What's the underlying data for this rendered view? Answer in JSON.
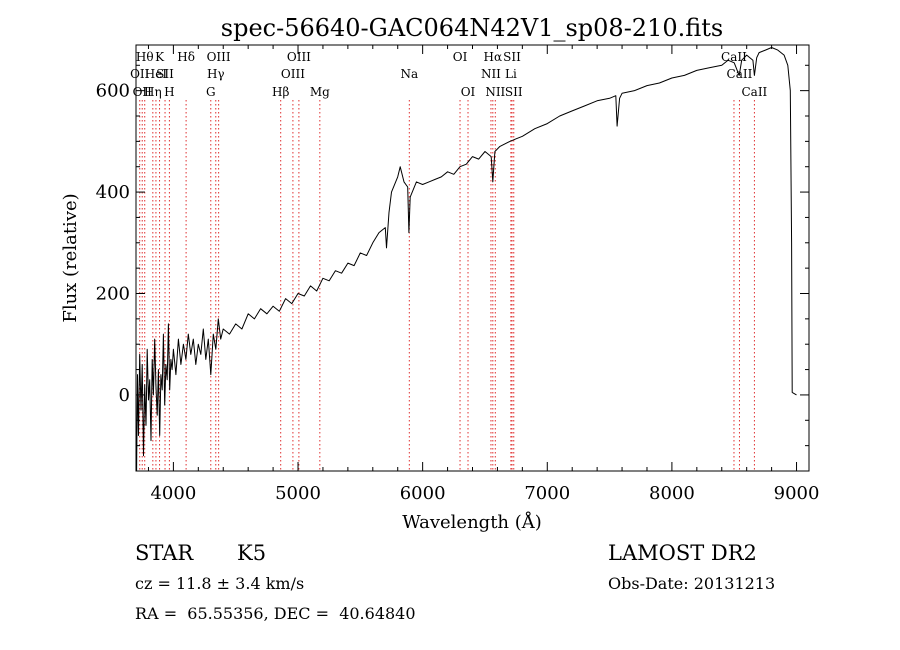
{
  "chart_data": {
    "type": "line",
    "title": "spec-56640-GAC064N42V1_sp08-210.fits",
    "xlabel": "Wavelength (Å)",
    "ylabel": "Flux (relative)",
    "xlim": [
      3700,
      9100
    ],
    "ylim": [
      -150,
      690
    ],
    "x_ticks": [
      4000,
      5000,
      6000,
      7000,
      8000,
      9000
    ],
    "y_ticks": [
      0,
      200,
      400,
      600
    ],
    "grid": false,
    "series": [
      {
        "color": "#000000",
        "points": [
          [
            3705,
            -150
          ],
          [
            3712,
            40
          ],
          [
            3720,
            -80
          ],
          [
            3730,
            80
          ],
          [
            3740,
            -30
          ],
          [
            3750,
            60
          ],
          [
            3760,
            -120
          ],
          [
            3770,
            20
          ],
          [
            3780,
            -60
          ],
          [
            3790,
            90
          ],
          [
            3800,
            -10
          ],
          [
            3810,
            30
          ],
          [
            3820,
            -90
          ],
          [
            3830,
            70
          ],
          [
            3840,
            0
          ],
          [
            3850,
            110
          ],
          [
            3860,
            20
          ],
          [
            3870,
            -40
          ],
          [
            3880,
            50
          ],
          [
            3890,
            -80
          ],
          [
            3900,
            40
          ],
          [
            3910,
            10
          ],
          [
            3920,
            120
          ],
          [
            3930,
            -20
          ],
          [
            3940,
            60
          ],
          [
            3950,
            30
          ],
          [
            3960,
            140
          ],
          [
            3970,
            10
          ],
          [
            3980,
            70
          ],
          [
            3990,
            50
          ],
          [
            4000,
            90
          ],
          [
            4020,
            40
          ],
          [
            4040,
            110
          ],
          [
            4060,
            60
          ],
          [
            4080,
            100
          ],
          [
            4100,
            70
          ],
          [
            4120,
            120
          ],
          [
            4140,
            80
          ],
          [
            4160,
            110
          ],
          [
            4180,
            60
          ],
          [
            4200,
            100
          ],
          [
            4220,
            80
          ],
          [
            4240,
            130
          ],
          [
            4260,
            70
          ],
          [
            4280,
            110
          ],
          [
            4300,
            40
          ],
          [
            4320,
            120
          ],
          [
            4340,
            90
          ],
          [
            4360,
            150
          ],
          [
            4380,
            110
          ],
          [
            4400,
            130
          ],
          [
            4450,
            120
          ],
          [
            4500,
            140
          ],
          [
            4550,
            130
          ],
          [
            4600,
            160
          ],
          [
            4650,
            150
          ],
          [
            4700,
            170
          ],
          [
            4750,
            160
          ],
          [
            4800,
            175
          ],
          [
            4850,
            165
          ],
          [
            4900,
            190
          ],
          [
            4950,
            180
          ],
          [
            5000,
            200
          ],
          [
            5050,
            195
          ],
          [
            5100,
            215
          ],
          [
            5150,
            205
          ],
          [
            5200,
            230
          ],
          [
            5250,
            225
          ],
          [
            5300,
            245
          ],
          [
            5350,
            240
          ],
          [
            5400,
            260
          ],
          [
            5450,
            255
          ],
          [
            5500,
            280
          ],
          [
            5550,
            275
          ],
          [
            5600,
            300
          ],
          [
            5650,
            320
          ],
          [
            5700,
            330
          ],
          [
            5710,
            290
          ],
          [
            5730,
            360
          ],
          [
            5750,
            400
          ],
          [
            5800,
            430
          ],
          [
            5820,
            450
          ],
          [
            5850,
            420
          ],
          [
            5880,
            410
          ],
          [
            5890,
            320
          ],
          [
            5900,
            390
          ],
          [
            5950,
            420
          ],
          [
            6000,
            415
          ],
          [
            6050,
            420
          ],
          [
            6100,
            425
          ],
          [
            6150,
            430
          ],
          [
            6200,
            440
          ],
          [
            6250,
            435
          ],
          [
            6300,
            450
          ],
          [
            6350,
            455
          ],
          [
            6400,
            470
          ],
          [
            6450,
            465
          ],
          [
            6500,
            480
          ],
          [
            6550,
            470
          ],
          [
            6563,
            420
          ],
          [
            6580,
            480
          ],
          [
            6620,
            490
          ],
          [
            6700,
            500
          ],
          [
            6750,
            505
          ],
          [
            6800,
            510
          ],
          [
            6900,
            525
          ],
          [
            7000,
            535
          ],
          [
            7100,
            550
          ],
          [
            7200,
            560
          ],
          [
            7300,
            570
          ],
          [
            7400,
            580
          ],
          [
            7500,
            585
          ],
          [
            7550,
            590
          ],
          [
            7560,
            530
          ],
          [
            7580,
            585
          ],
          [
            7600,
            595
          ],
          [
            7700,
            600
          ],
          [
            7800,
            610
          ],
          [
            7900,
            615
          ],
          [
            8000,
            625
          ],
          [
            8100,
            630
          ],
          [
            8200,
            640
          ],
          [
            8300,
            645
          ],
          [
            8400,
            650
          ],
          [
            8450,
            660
          ],
          [
            8500,
            655
          ],
          [
            8540,
            630
          ],
          [
            8560,
            660
          ],
          [
            8600,
            670
          ],
          [
            8650,
            660
          ],
          [
            8662,
            630
          ],
          [
            8680,
            665
          ],
          [
            8700,
            675
          ],
          [
            8750,
            680
          ],
          [
            8800,
            685
          ],
          [
            8850,
            680
          ],
          [
            8900,
            670
          ],
          [
            8930,
            650
          ],
          [
            8950,
            600
          ],
          [
            8960,
            300
          ],
          [
            8965,
            5
          ],
          [
            9000,
            0
          ]
        ]
      }
    ],
    "line_markers": [
      {
        "x": 3730,
        "label": "OII",
        "row": 2
      },
      {
        "x": 3750,
        "label": "OII",
        "row": 3
      },
      {
        "x": 3770,
        "label": "Hθ",
        "row": 1
      },
      {
        "x": 3835,
        "label": "Hη",
        "row": 3
      },
      {
        "x": 3860,
        "label": "HeI",
        "row": 2
      },
      {
        "x": 3889,
        "label": "K",
        "row": 1
      },
      {
        "x": 3933,
        "label": "SII",
        "row": 2
      },
      {
        "x": 3968,
        "label": "H",
        "row": 3
      },
      {
        "x": 4102,
        "label": "Hδ",
        "row": 1
      },
      {
        "x": 4300,
        "label": "G",
        "row": 3
      },
      {
        "x": 4340,
        "label": "Hγ",
        "row": 2
      },
      {
        "x": 4363,
        "label": "OIII",
        "row": 1
      },
      {
        "x": 4861,
        "label": "Hβ",
        "row": 3
      },
      {
        "x": 4959,
        "label": "OIII",
        "row": 2
      },
      {
        "x": 5007,
        "label": "OIII",
        "row": 1
      },
      {
        "x": 5175,
        "label": "Mg",
        "row": 3
      },
      {
        "x": 5893,
        "label": "Na",
        "row": 2
      },
      {
        "x": 6300,
        "label": "OI",
        "row": 1
      },
      {
        "x": 6364,
        "label": "OI",
        "row": 3
      },
      {
        "x": 6548,
        "label": "NII",
        "row": 2
      },
      {
        "x": 6563,
        "label": "Hα",
        "row": 1
      },
      {
        "x": 6583,
        "label": "NII",
        "row": 3
      },
      {
        "x": 6708,
        "label": "Li",
        "row": 2
      },
      {
        "x": 6717,
        "label": "SII",
        "row": 1
      },
      {
        "x": 6731,
        "label": "SII",
        "row": 3
      },
      {
        "x": 8498,
        "label": "CaII",
        "row": 1
      },
      {
        "x": 8542,
        "label": "CaII",
        "row": 2
      },
      {
        "x": 8662,
        "label": "CaII",
        "row": 3
      }
    ]
  },
  "info": {
    "object_class": "STAR",
    "subclass": "K5",
    "survey": "LAMOST DR2",
    "cz": "cz = 11.8 ± 3.4 km/s",
    "obs_date": "Obs-Date: 20131213",
    "coords": "RA =  65.55356, DEC =  40.64840"
  }
}
